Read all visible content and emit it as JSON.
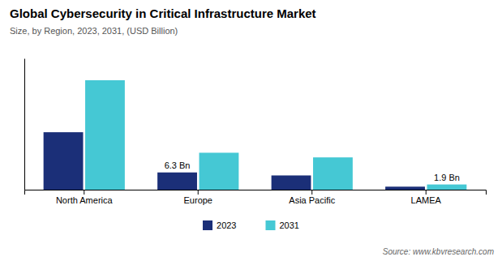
{
  "chart_data": {
    "type": "bar",
    "title": "Global Cybersecurity in Critical Infrastructure Market",
    "subtitle": "Size, by Region, 2023, 2031, (USD Billion)",
    "source": "Source: www.kbvresearch.com",
    "categories": [
      "North America",
      "Europe",
      "Asia Pacific",
      "LAMEA"
    ],
    "series": [
      {
        "name": "2023",
        "color": "#1b2f78",
        "values": [
          21.0,
          6.3,
          5.2,
          1.1
        ]
      },
      {
        "name": "2031",
        "color": "#45c8d4",
        "values": [
          40.0,
          13.5,
          11.8,
          1.9
        ]
      }
    ],
    "annotations": [
      {
        "text": "6.3 Bn",
        "series": 0,
        "index": 1
      },
      {
        "text": "1.9 Bn",
        "series": 1,
        "index": 3
      }
    ],
    "ylim": [
      0,
      48
    ],
    "tick_labels": "x",
    "grid": false,
    "legend": "bottom"
  }
}
